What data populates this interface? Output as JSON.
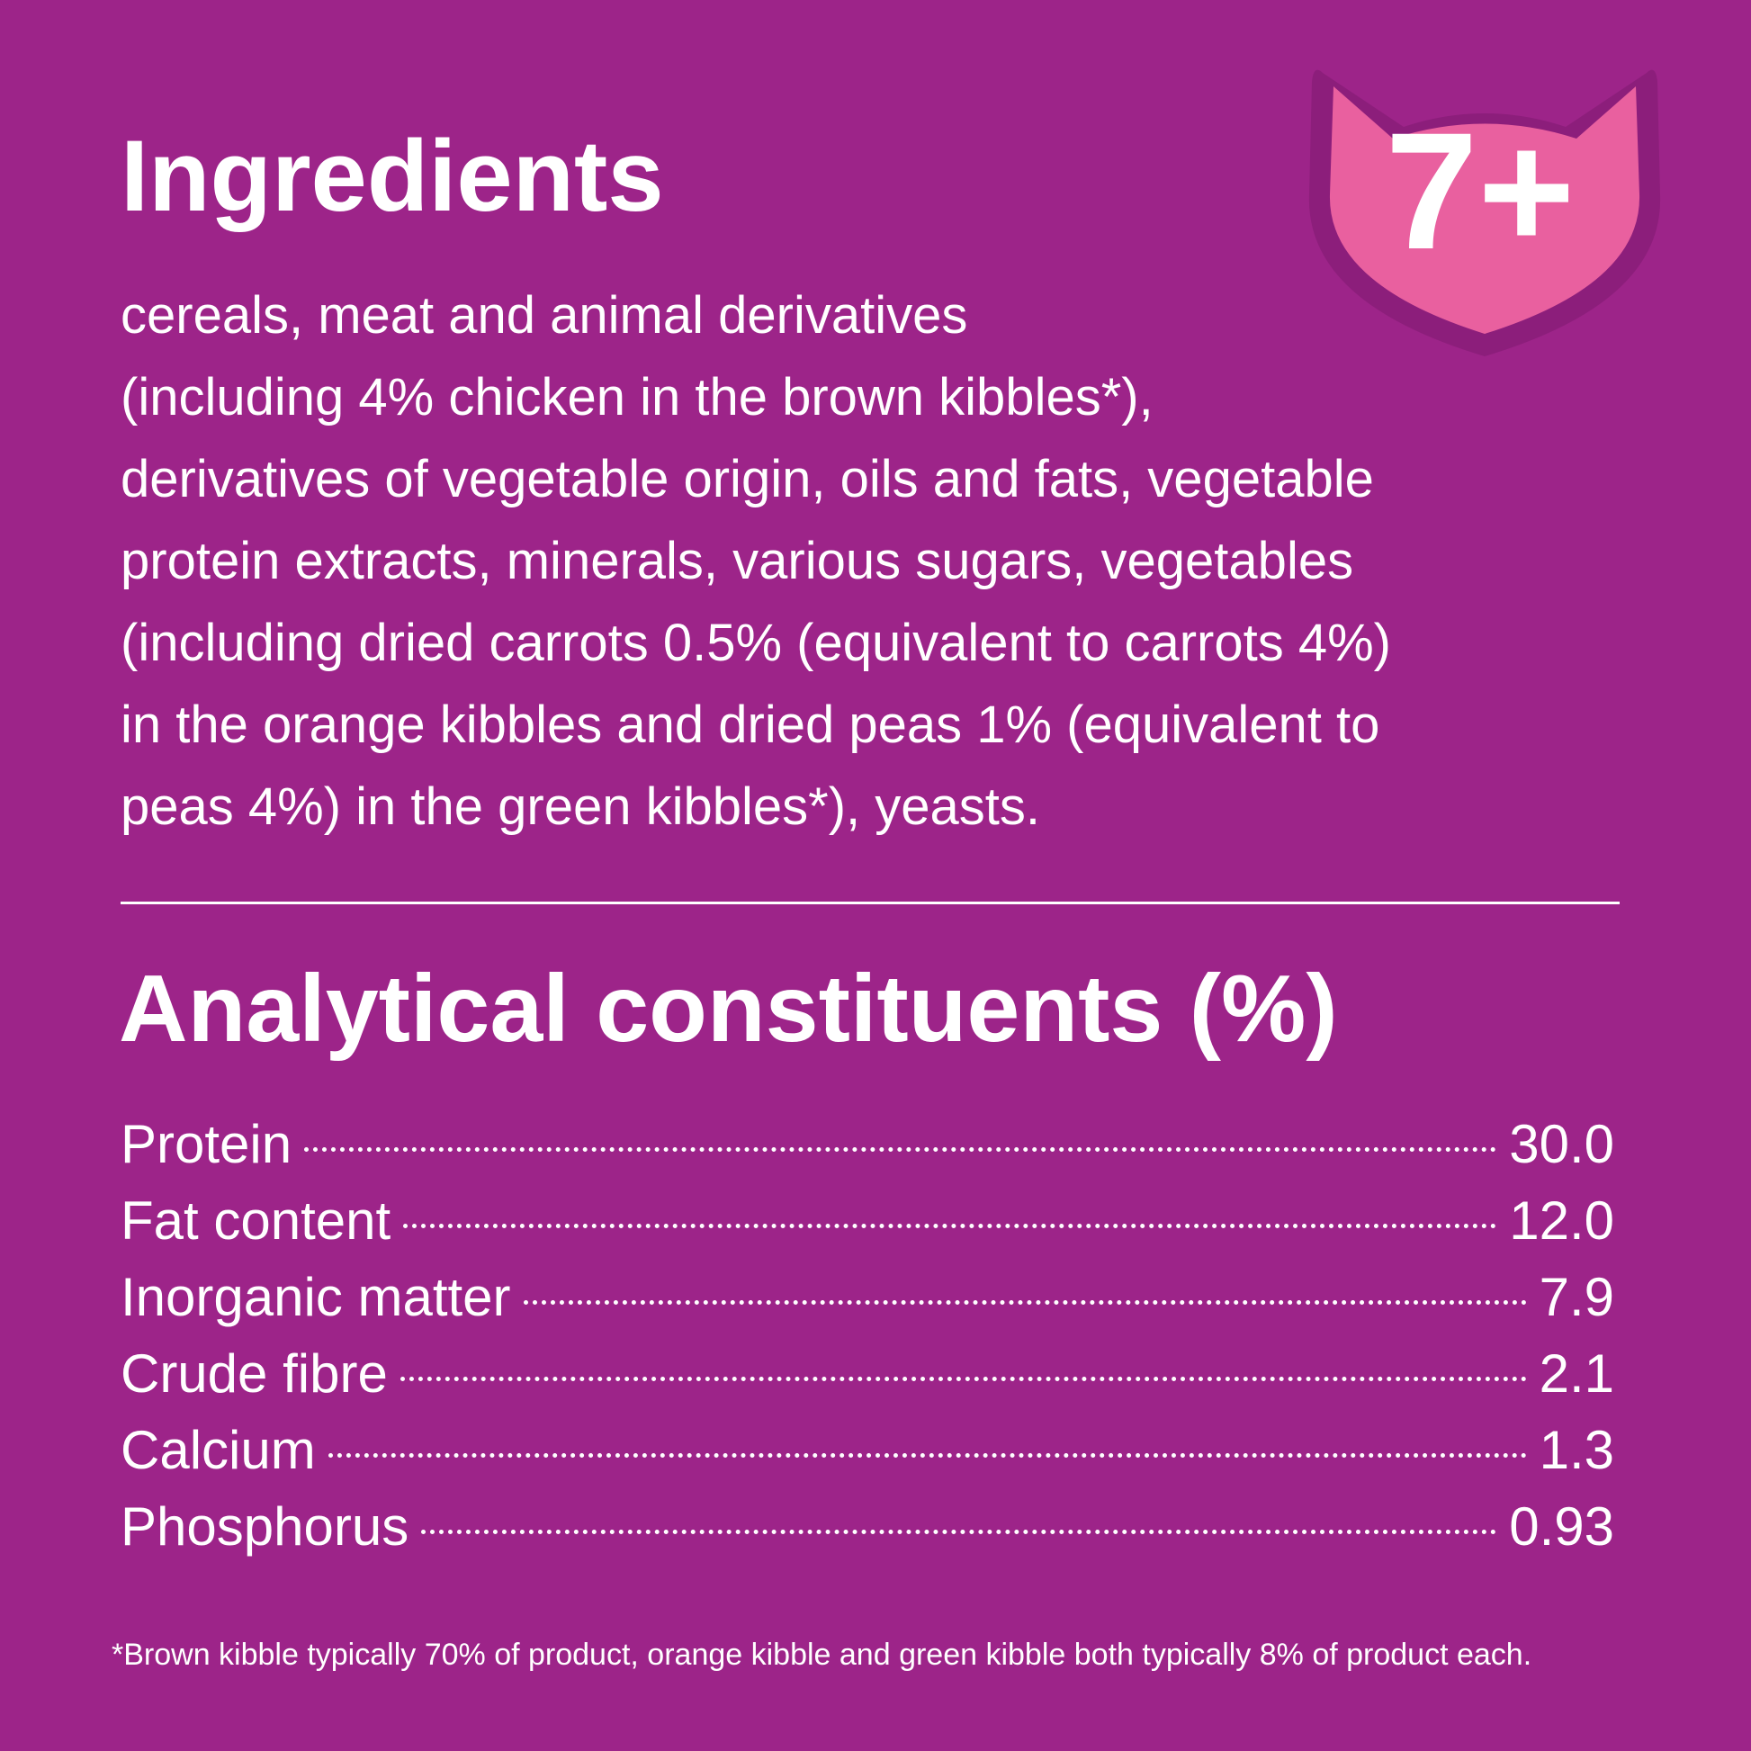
{
  "badge": {
    "label": "7+"
  },
  "ingredients": {
    "title": "Ingredients",
    "lines": [
      "cereals, meat and animal derivatives",
      "(including 4% chicken in the brown kibbles*),",
      "derivatives of vegetable origin, oils and fats, vegetable",
      "protein extracts, minerals, various sugars, vegetables",
      "(including dried carrots 0.5% (equivalent to carrots 4%)",
      "in the orange kibbles and dried peas 1% (equivalent to",
      "peas 4%) in the green kibbles*), yeasts."
    ]
  },
  "constituents": {
    "title": "Analytical constituents (%)",
    "rows": [
      [
        "Protein",
        "30.0"
      ],
      [
        "Fat content",
        "12.0"
      ],
      [
        "Inorganic matter",
        "7.9"
      ],
      [
        "Crude fibre",
        "2.1"
      ],
      [
        "Calcium",
        "1.3"
      ],
      [
        "Phosphorus",
        "0.93"
      ]
    ]
  },
  "footnote": "*Brown kibble typically 70% of product, orange kibble and green kibble both typically 8% of product each."
}
